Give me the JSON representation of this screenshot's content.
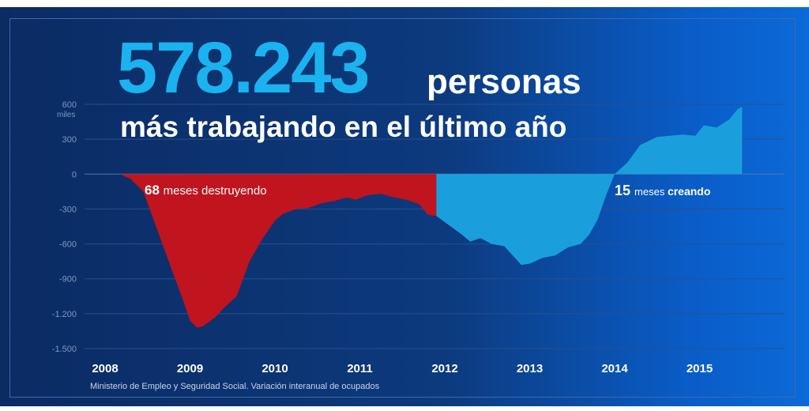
{
  "headline": {
    "number": "578.243",
    "unit": "personas",
    "subtitle": "más trabajando en el último año"
  },
  "colors": {
    "negative": "#c0141e",
    "positive": "#1a9fdc",
    "number": "#1ab3f0"
  },
  "chart_data": {
    "type": "area",
    "ylabel": "miles",
    "ylim": [
      -1500,
      600
    ],
    "y_ticks": [
      600,
      300,
      0,
      -300,
      -600,
      -900,
      -1200,
      -1500
    ],
    "y_tick_labels": [
      "600",
      "300",
      "0",
      "-300",
      "-600",
      "-900",
      "-1.200",
      "-1.500"
    ],
    "x_range": [
      2008,
      2016
    ],
    "x_ticks": [
      2008,
      2009,
      2010,
      2011,
      2012,
      2013,
      2014,
      2015
    ],
    "x_tick_labels": [
      "2008",
      "2009",
      "2010",
      "2011",
      "2012",
      "2013",
      "2014",
      "2015"
    ],
    "series": [
      {
        "name": "68 meses destruyendo",
        "values": [
          [
            2008.17,
            0
          ],
          [
            2008.3,
            -40
          ],
          [
            2008.45,
            -150
          ],
          [
            2008.6,
            -450
          ],
          [
            2008.75,
            -750
          ],
          [
            2008.9,
            -1050
          ],
          [
            2009.0,
            -1260
          ],
          [
            2009.08,
            -1320
          ],
          [
            2009.15,
            -1310
          ],
          [
            2009.3,
            -1230
          ],
          [
            2009.4,
            -1150
          ],
          [
            2009.55,
            -1050
          ],
          [
            2009.7,
            -750
          ],
          [
            2009.85,
            -560
          ],
          [
            2010.0,
            -400
          ],
          [
            2010.1,
            -340
          ],
          [
            2010.25,
            -300
          ],
          [
            2010.4,
            -290
          ],
          [
            2010.55,
            -250
          ],
          [
            2010.7,
            -230
          ],
          [
            2010.85,
            -200
          ],
          [
            2010.95,
            -220
          ],
          [
            2011.1,
            -180
          ],
          [
            2011.25,
            -170
          ],
          [
            2011.4,
            -200
          ],
          [
            2011.55,
            -220
          ],
          [
            2011.7,
            -260
          ],
          [
            2011.8,
            -350
          ],
          [
            2011.9,
            -360
          ],
          [
            2011.9,
            0
          ]
        ]
      },
      {
        "name": "15 meses creando",
        "values": [
          [
            2011.9,
            0
          ],
          [
            2011.9,
            -360
          ],
          [
            2012.05,
            -440
          ],
          [
            2012.2,
            -520
          ],
          [
            2012.3,
            -580
          ],
          [
            2012.42,
            -550
          ],
          [
            2012.55,
            -600
          ],
          [
            2012.7,
            -620
          ],
          [
            2012.8,
            -700
          ],
          [
            2012.9,
            -780
          ],
          [
            2013.0,
            -770
          ],
          [
            2013.15,
            -720
          ],
          [
            2013.3,
            -700
          ],
          [
            2013.45,
            -630
          ],
          [
            2013.6,
            -600
          ],
          [
            2013.7,
            -520
          ],
          [
            2013.8,
            -390
          ],
          [
            2013.9,
            -180
          ],
          [
            2014.0,
            0
          ],
          [
            2014.15,
            100
          ],
          [
            2014.3,
            250
          ],
          [
            2014.5,
            320
          ],
          [
            2014.65,
            330
          ],
          [
            2014.8,
            340
          ],
          [
            2014.95,
            330
          ],
          [
            2015.05,
            420
          ],
          [
            2015.2,
            400
          ],
          [
            2015.35,
            470
          ],
          [
            2015.45,
            560
          ],
          [
            2015.5,
            578
          ],
          [
            2015.5,
            0
          ]
        ]
      }
    ],
    "annotations": [
      {
        "number": "68",
        "text": "meses destruyendo"
      },
      {
        "number": "15",
        "text": "meses",
        "bold_text": "creando"
      }
    ],
    "source": "Ministerio de Empleo y Seguridad Social. Variación interanual de ocupados"
  }
}
